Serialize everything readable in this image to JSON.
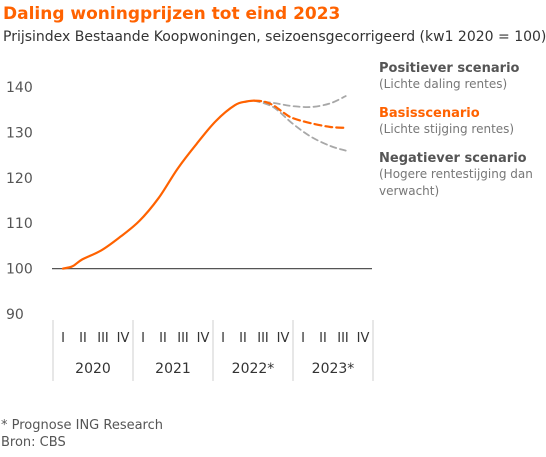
{
  "header": {
    "title": "Daling woningprijzen tot eind 2023",
    "subtitle": "Prijsindex Bestaande Koopwoningen, seizoensgecorrigeerd (kw1 2020 = 100)"
  },
  "chart_data": {
    "type": "line",
    "ylim": [
      90,
      140
    ],
    "y_ticks": [
      "90",
      "100",
      "110",
      "120",
      "130",
      "140"
    ],
    "quarter_labels": [
      "I",
      "II",
      "III",
      "IV",
      "I",
      "II",
      "III",
      "IV",
      "I",
      "II",
      "III",
      "IV",
      "I",
      "II",
      "III",
      "IV"
    ],
    "year_labels": [
      "2020",
      "2021",
      "2022*",
      "2023*"
    ],
    "x": [
      0,
      1,
      2,
      3,
      4,
      5,
      6,
      7,
      8,
      9,
      10,
      11,
      12,
      13,
      14,
      15
    ],
    "grid": false,
    "colors": {
      "historical": "#ff6200",
      "basis": "#ff6200",
      "scenario": "#a8a8a8",
      "axis": "#555555",
      "text": "#555555"
    },
    "series": [
      {
        "key": "historical",
        "style": "solid",
        "points": [
          [
            0,
            100
          ],
          [
            0.5,
            100.5
          ],
          [
            1,
            102
          ],
          [
            2,
            104
          ],
          [
            3,
            107
          ],
          [
            4,
            110.5
          ],
          [
            5,
            115.5
          ],
          [
            6,
            122
          ],
          [
            7,
            127.5
          ],
          [
            8,
            132.5
          ],
          [
            9,
            136
          ],
          [
            9.6,
            136.8
          ],
          [
            10,
            137
          ]
        ]
      },
      {
        "key": "basis",
        "name": "Basisscenario",
        "note": "(Lichte stijging rentes)",
        "style": "dashed",
        "points": [
          [
            10,
            137
          ],
          [
            10.5,
            136.8
          ],
          [
            11,
            136
          ],
          [
            11.5,
            134.5
          ],
          [
            12,
            133.2
          ],
          [
            13,
            132
          ],
          [
            14,
            131.2
          ],
          [
            14.8,
            131
          ]
        ]
      },
      {
        "key": "positive",
        "name": "Positiever scenario",
        "note": "(Lichte daling rentes)",
        "style": "dashed",
        "points": [
          [
            10,
            137
          ],
          [
            11,
            136.5
          ],
          [
            12,
            135.8
          ],
          [
            13,
            135.6
          ],
          [
            14,
            136.4
          ],
          [
            14.8,
            138
          ]
        ]
      },
      {
        "key": "negative",
        "name": "Negatiever scenario",
        "note": "(Hogere rentestijging dan verwacht)",
        "style": "dashed",
        "points": [
          [
            10,
            137
          ],
          [
            11,
            135.6
          ],
          [
            12,
            132
          ],
          [
            13,
            129
          ],
          [
            14,
            127
          ],
          [
            14.8,
            126
          ]
        ]
      }
    ],
    "legend": [
      {
        "key": "positive",
        "label": "Positiever scenario",
        "note_lines": [
          "(Lichte daling rentes)"
        ],
        "color": "#555555",
        "note_color": "#777777"
      },
      {
        "key": "basis",
        "label": "Basisscenario",
        "note_lines": [
          "(Lichte stijging rentes)"
        ],
        "color": "#ff6200",
        "note_color": "#777777"
      },
      {
        "key": "negative",
        "label": "Negatiever scenario",
        "note_lines": [
          "(Hogere rentestijging dan",
          "verwacht)"
        ],
        "color": "#555555",
        "note_color": "#777777"
      }
    ]
  },
  "footnote": {
    "line1": "* Prognose ING Research",
    "line2": "Bron: CBS"
  }
}
